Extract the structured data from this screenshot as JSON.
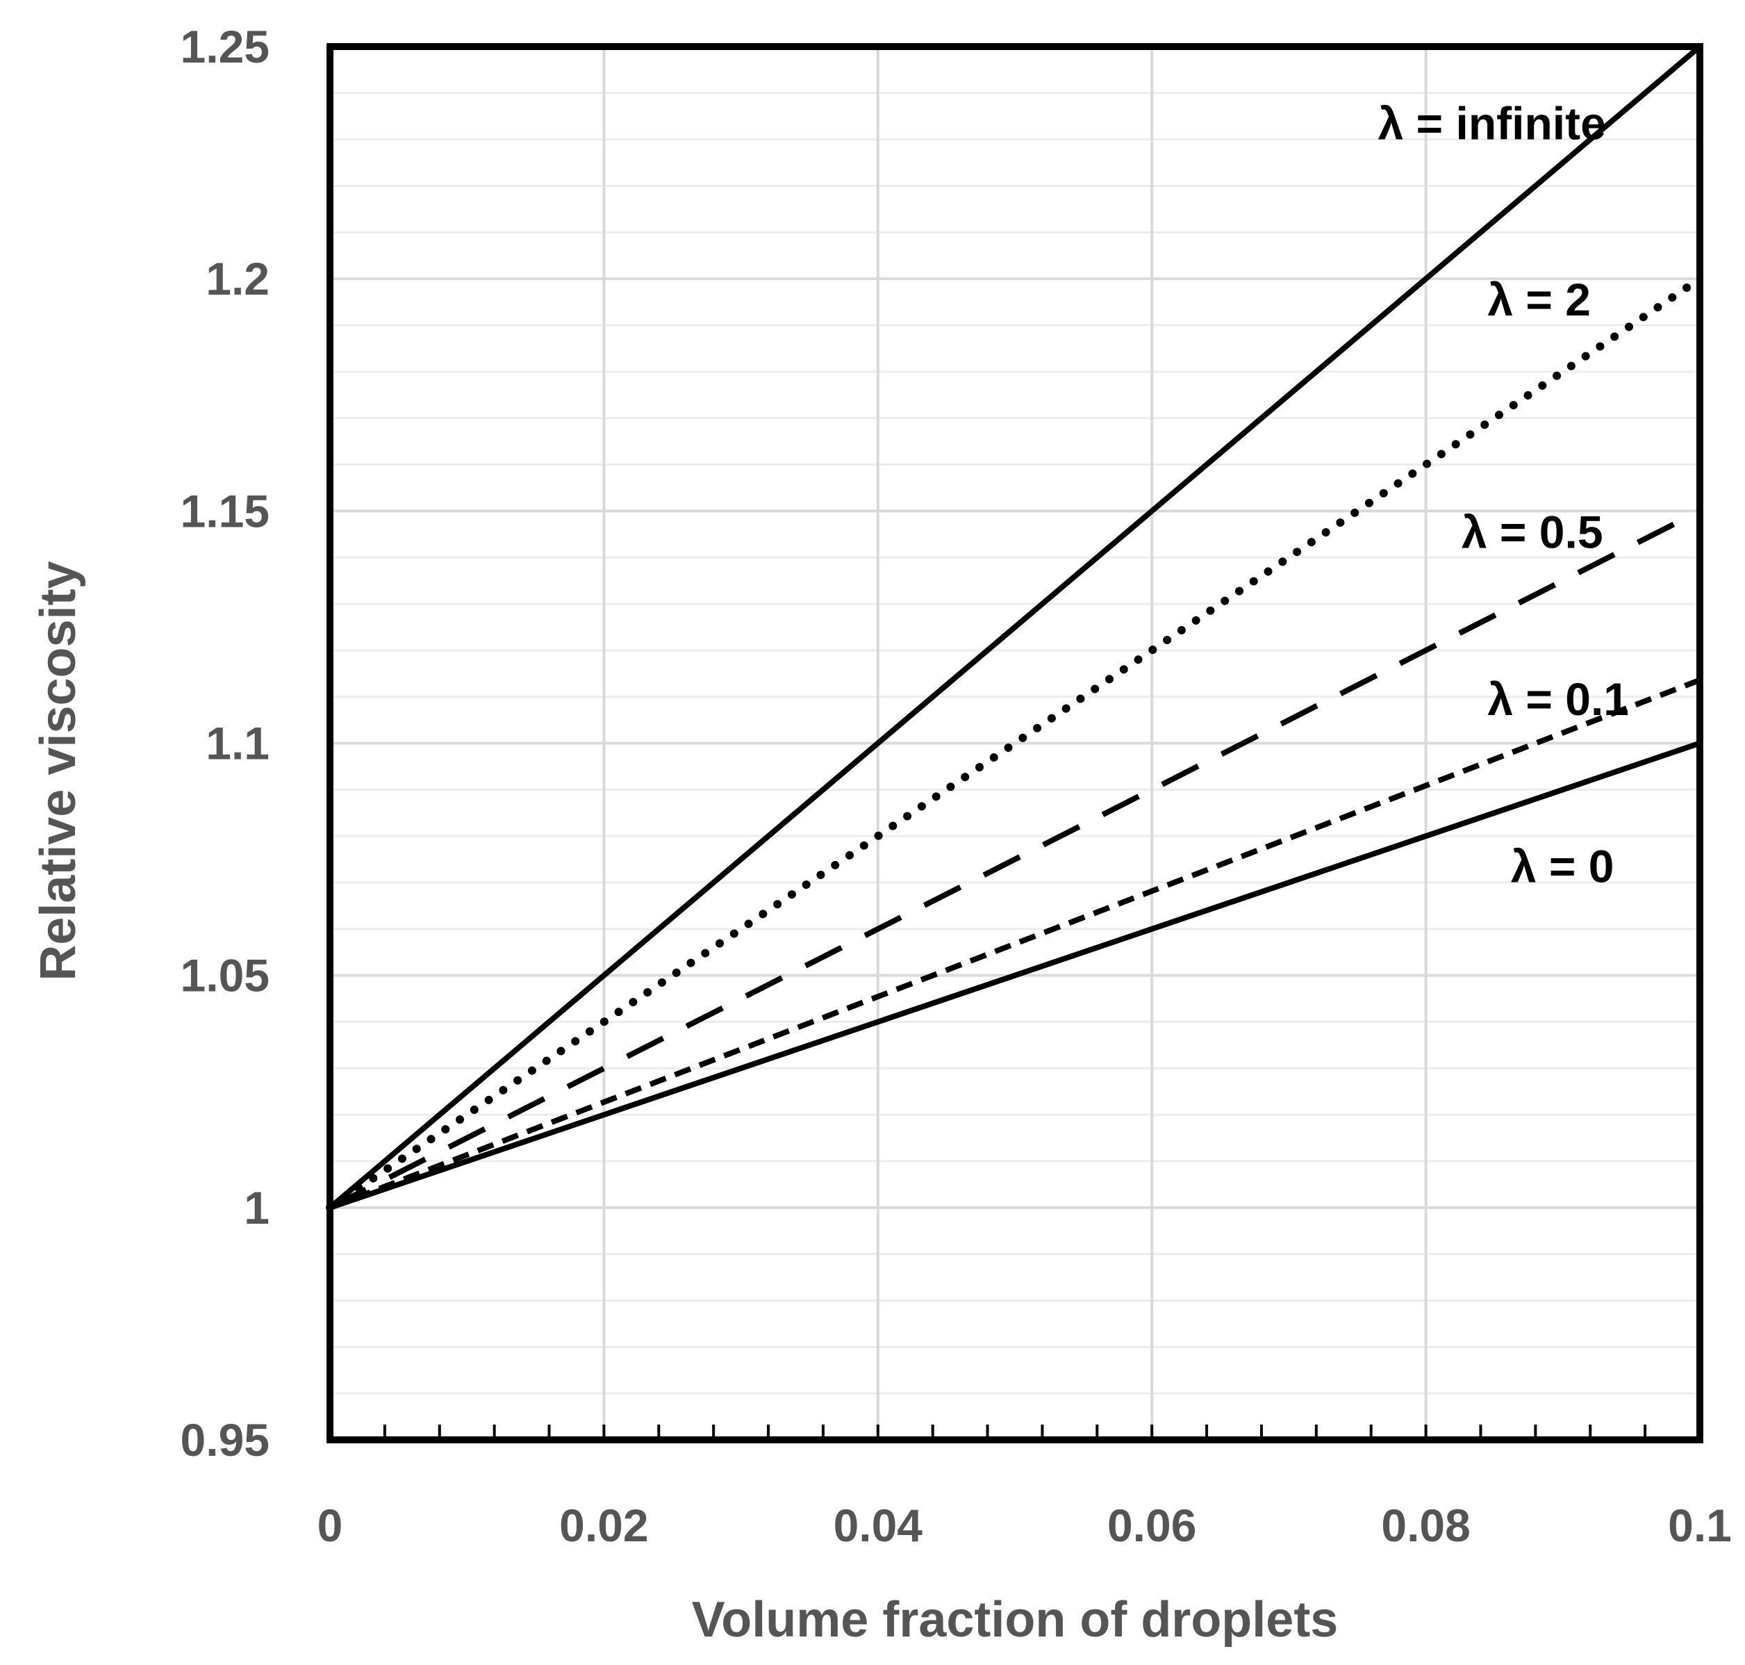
{
  "chart_data": {
    "type": "line",
    "xlabel": "Volume fraction of droplets",
    "ylabel": "Relative viscosity",
    "xlim": [
      0,
      0.1
    ],
    "ylim": [
      0.95,
      1.25
    ],
    "x_ticks": [
      0,
      0.02,
      0.04,
      0.06,
      0.08,
      0.1
    ],
    "x_tick_labels": [
      "0",
      "0.02",
      "0.04",
      "0.06",
      "0.08",
      "0.1"
    ],
    "y_ticks": [
      0.95,
      1.0,
      1.05,
      1.1,
      1.15,
      1.2,
      1.25
    ],
    "y_tick_labels": [
      "0.95",
      "1",
      "1.05",
      "1.1",
      "1.15",
      "1.2",
      "1.25"
    ],
    "x_minor_step": 0.004,
    "y_minor_step": 0.01,
    "grid": true,
    "series": [
      {
        "name": "λ = infinite",
        "dash": "solid",
        "x": [
          0,
          0.1
        ],
        "y": [
          1.0,
          1.25
        ]
      },
      {
        "name": "λ = 2",
        "dash": "dotted",
        "x": [
          0,
          0.1
        ],
        "y": [
          1.0,
          1.2
        ]
      },
      {
        "name": "λ = 0.5",
        "dash": "long-dash",
        "x": [
          0,
          0.1
        ],
        "y": [
          1.0,
          1.15
        ]
      },
      {
        "name": "λ = 0.1",
        "dash": "short-dash",
        "x": [
          0,
          0.1
        ],
        "y": [
          1.0,
          1.1136
        ]
      },
      {
        "name": "λ = 0",
        "dash": "solid",
        "x": [
          0,
          0.1
        ],
        "y": [
          1.0,
          1.1
        ]
      }
    ],
    "label_positions": [
      {
        "x": 0.0765,
        "y": 1.2335
      },
      {
        "x": 0.0845,
        "y": 1.1955
      },
      {
        "x": 0.0826,
        "y": 1.1455
      },
      {
        "x": 0.0845,
        "y": 1.1095
      },
      {
        "x": 0.0862,
        "y": 1.0735
      }
    ]
  }
}
